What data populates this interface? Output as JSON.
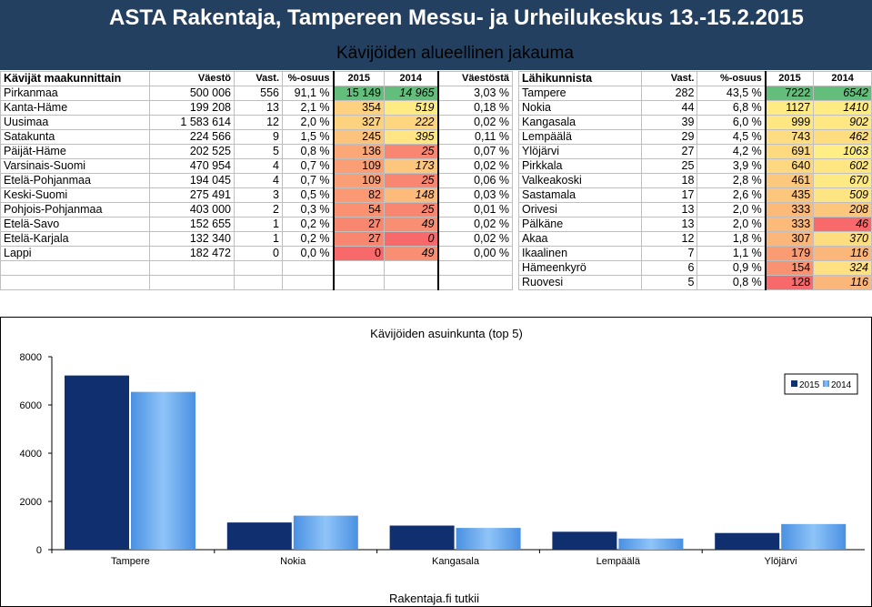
{
  "title": "ASTA Rakentaja, Tampereen Messu- ja Urheilukeskus 13.-15.2.2015",
  "subtitle": "Kävijöiden alueellinen jakauma",
  "colors": {
    "banner": "#244061",
    "green": "#63be7b",
    "yellow": "#ffeb84",
    "red": "#f8696b",
    "bar2015": "#0f2f6f",
    "bar2014": "#5da5f0"
  },
  "left_table": {
    "headers": [
      "Kävijät maakunnittain",
      "Väestö",
      "Vast.",
      "%-osuus",
      "2015",
      "2014",
      "Väestöstä"
    ],
    "rows": [
      [
        "Pirkanmaa",
        "500 006",
        "556",
        "91,1 %",
        "15 149",
        "14 965",
        "3,03 %"
      ],
      [
        "Kanta-Häme",
        "199 208",
        "13",
        "2,1 %",
        "354",
        "519",
        "0,18 %"
      ],
      [
        "Uusimaa",
        "1 583 614",
        "12",
        "2,0 %",
        "327",
        "222",
        "0,02 %"
      ],
      [
        "Satakunta",
        "224 566",
        "9",
        "1,5 %",
        "245",
        "395",
        "0,11 %"
      ],
      [
        "Päijät-Häme",
        "202 525",
        "5",
        "0,8 %",
        "136",
        "25",
        "0,07 %"
      ],
      [
        "Varsinais-Suomi",
        "470 954",
        "4",
        "0,7 %",
        "109",
        "173",
        "0,02 %"
      ],
      [
        "Etelä-Pohjanmaa",
        "194 045",
        "4",
        "0,7 %",
        "109",
        "25",
        "0,06 %"
      ],
      [
        "Keski-Suomi",
        "275 491",
        "3",
        "0,5 %",
        "82",
        "148",
        "0,03 %"
      ],
      [
        "Pohjois-Pohjanmaa",
        "403 000",
        "2",
        "0,3 %",
        "54",
        "25",
        "0,01 %"
      ],
      [
        "Etelä-Savo",
        "152 655",
        "1",
        "0,2 %",
        "27",
        "49",
        "0,02 %"
      ],
      [
        "Etelä-Karjala",
        "132 340",
        "1",
        "0,2 %",
        "27",
        "0",
        "0,02 %"
      ],
      [
        "Lappi",
        "182 472",
        "0",
        "0,0 %",
        "0",
        "49",
        "0,00 %"
      ],
      [
        "",
        "",
        "",
        "",
        "",
        "",
        ""
      ],
      [
        "",
        "",
        "",
        "",
        "",
        "",
        ""
      ]
    ],
    "cell_colors_2015": [
      "#63be7b",
      "#fdd17f",
      "#fdd27f",
      "#fcc37c",
      "#fba777",
      "#fa9f75",
      "#fa9f75",
      "#fa9974",
      "#fa9272",
      "#f98770",
      "#f98770",
      "#f8696b",
      "",
      ""
    ],
    "cell_colors_2014": [
      "#63be7b",
      "#ffeb84",
      "#fed680",
      "#ffe583",
      "#f98670",
      "#fdc67d",
      "#f98670",
      "#fcba7b",
      "#f98670",
      "#f98f72",
      "#f8696b",
      "#f98f72",
      "",
      ""
    ]
  },
  "right_table": {
    "headers": [
      "Lähikunnista",
      "Vast.",
      "%-osuus",
      "2015",
      "2014"
    ],
    "rows": [
      [
        "Tampere",
        "282",
        "43,5 %",
        "7222",
        "6542"
      ],
      [
        "Nokia",
        "44",
        "6,8 %",
        "1127",
        "1410"
      ],
      [
        "Kangasala",
        "39",
        "6,0 %",
        "999",
        "902"
      ],
      [
        "Lempäälä",
        "29",
        "4,5 %",
        "743",
        "462"
      ],
      [
        "Ylöjärvi",
        "27",
        "4,2 %",
        "691",
        "1063"
      ],
      [
        "Pirkkala",
        "25",
        "3,9 %",
        "640",
        "602"
      ],
      [
        "Valkeakoski",
        "18",
        "2,8 %",
        "461",
        "670"
      ],
      [
        "Sastamala",
        "17",
        "2,6 %",
        "435",
        "509"
      ],
      [
        "Orivesi",
        "13",
        "2,0 %",
        "333",
        "208"
      ],
      [
        "Pälkäne",
        "13",
        "2,0 %",
        "333",
        "46"
      ],
      [
        "Akaa",
        "12",
        "1,8 %",
        "307",
        "370"
      ],
      [
        "Ikaalinen",
        "7",
        "1,1 %",
        "179",
        "116"
      ],
      [
        "Hämeenkyrö",
        "6",
        "0,9 %",
        "154",
        "324"
      ],
      [
        "Ruovesi",
        "5",
        "0,8 %",
        "128",
        "116"
      ]
    ],
    "cell_colors_2015": [
      "#63be7b",
      "#ffeb84",
      "#fee683",
      "#fedc81",
      "#fdda80",
      "#fdd880",
      "#fcc87d",
      "#fcc67d",
      "#fbb97a",
      "#fbb97a",
      "#fbb67a",
      "#f99c74",
      "#f99271",
      "#f8696b"
    ],
    "cell_colors_2014": [
      "#63be7b",
      "#ffeb84",
      "#ffe884",
      "#fedd81",
      "#ffed85",
      "#ffe683",
      "#feea84",
      "#fee583",
      "#fcc77d",
      "#f8696b",
      "#fedd81",
      "#fbb67a",
      "#ffe183",
      "#fbb67a"
    ]
  },
  "chart_data": {
    "type": "bar",
    "title": "Kävijöiden asuinkunta (top 5)",
    "categories": [
      "Tampere",
      "Nokia",
      "Kangasala",
      "Lempäälä",
      "Ylöjärvi"
    ],
    "series": [
      {
        "name": "2015",
        "values": [
          7222,
          1127,
          999,
          743,
          691
        ]
      },
      {
        "name": "2014",
        "values": [
          6542,
          1410,
          902,
          462,
          1063
        ]
      }
    ],
    "y_ticks": [
      "0",
      "2000",
      "4000",
      "6000",
      "8000"
    ],
    "ylim": [
      0,
      8000
    ],
    "legend": "top-right",
    "grid": false
  },
  "footer": "Rakentaja.fi tutkii"
}
